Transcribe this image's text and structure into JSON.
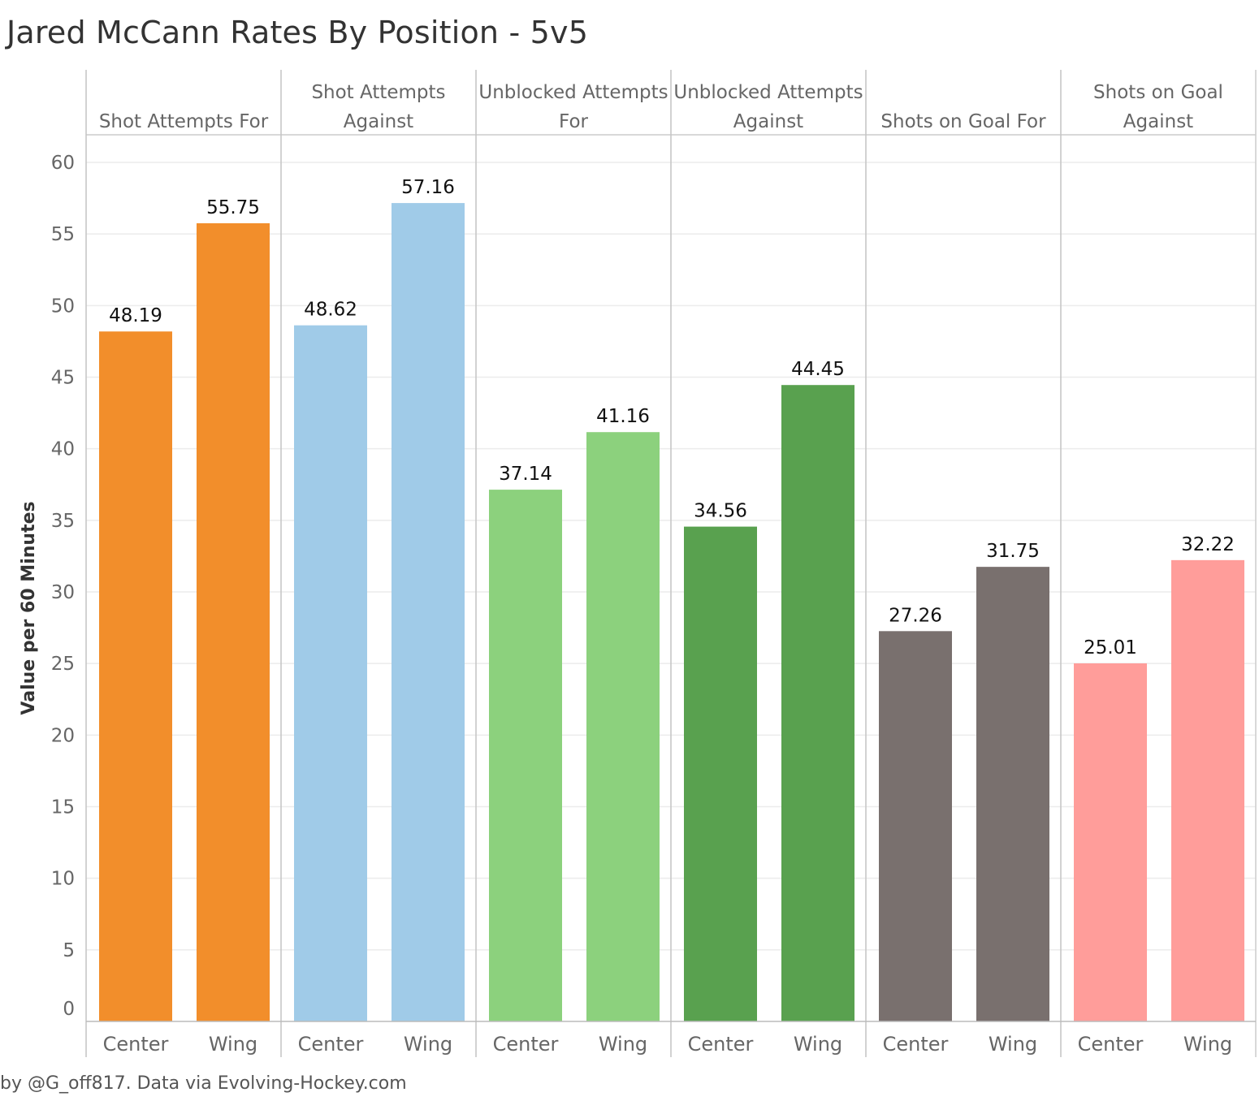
{
  "title": "Jared McCann Rates By Position - 5v5",
  "footer": "by @G_off817. Data via Evolving-Hockey.com",
  "chart_data": {
    "type": "bar",
    "title": "Jared McCann Rates By Position - 5v5",
    "ylabel": "Value per 60 Minutes",
    "xlabel": "",
    "ylim": [
      0,
      60
    ],
    "yticks": [
      0,
      5,
      10,
      15,
      20,
      25,
      30,
      35,
      40,
      45,
      50,
      55,
      60
    ],
    "grid": true,
    "categories": [
      "Center",
      "Wing"
    ],
    "panels": [
      {
        "header": [
          "Shot Attempts For"
        ],
        "color": "#F28E2B",
        "values": [
          48.19,
          55.75
        ],
        "labels": [
          "48.19",
          "55.75"
        ]
      },
      {
        "header": [
          "Shot Attempts",
          "Against"
        ],
        "color": "#A0CBE8",
        "values": [
          48.62,
          57.16
        ],
        "labels": [
          "48.62",
          "57.16"
        ]
      },
      {
        "header": [
          "Unblocked Attempts",
          "For"
        ],
        "color": "#8CD17D",
        "values": [
          37.14,
          41.16
        ],
        "labels": [
          "37.14",
          "41.16"
        ]
      },
      {
        "header": [
          "Unblocked Attempts",
          "Against"
        ],
        "color": "#59A14F",
        "values": [
          34.56,
          44.45
        ],
        "labels": [
          "34.56",
          "44.45"
        ]
      },
      {
        "header": [
          "Shots on Goal For"
        ],
        "color": "#79706E",
        "values": [
          27.26,
          31.75
        ],
        "labels": [
          "27.26",
          "31.75"
        ]
      },
      {
        "header": [
          "Shots on Goal",
          "Against"
        ],
        "color": "#FF9D9A",
        "values": [
          25.01,
          32.22
        ],
        "labels": [
          "25.01",
          "32.22"
        ]
      }
    ]
  }
}
